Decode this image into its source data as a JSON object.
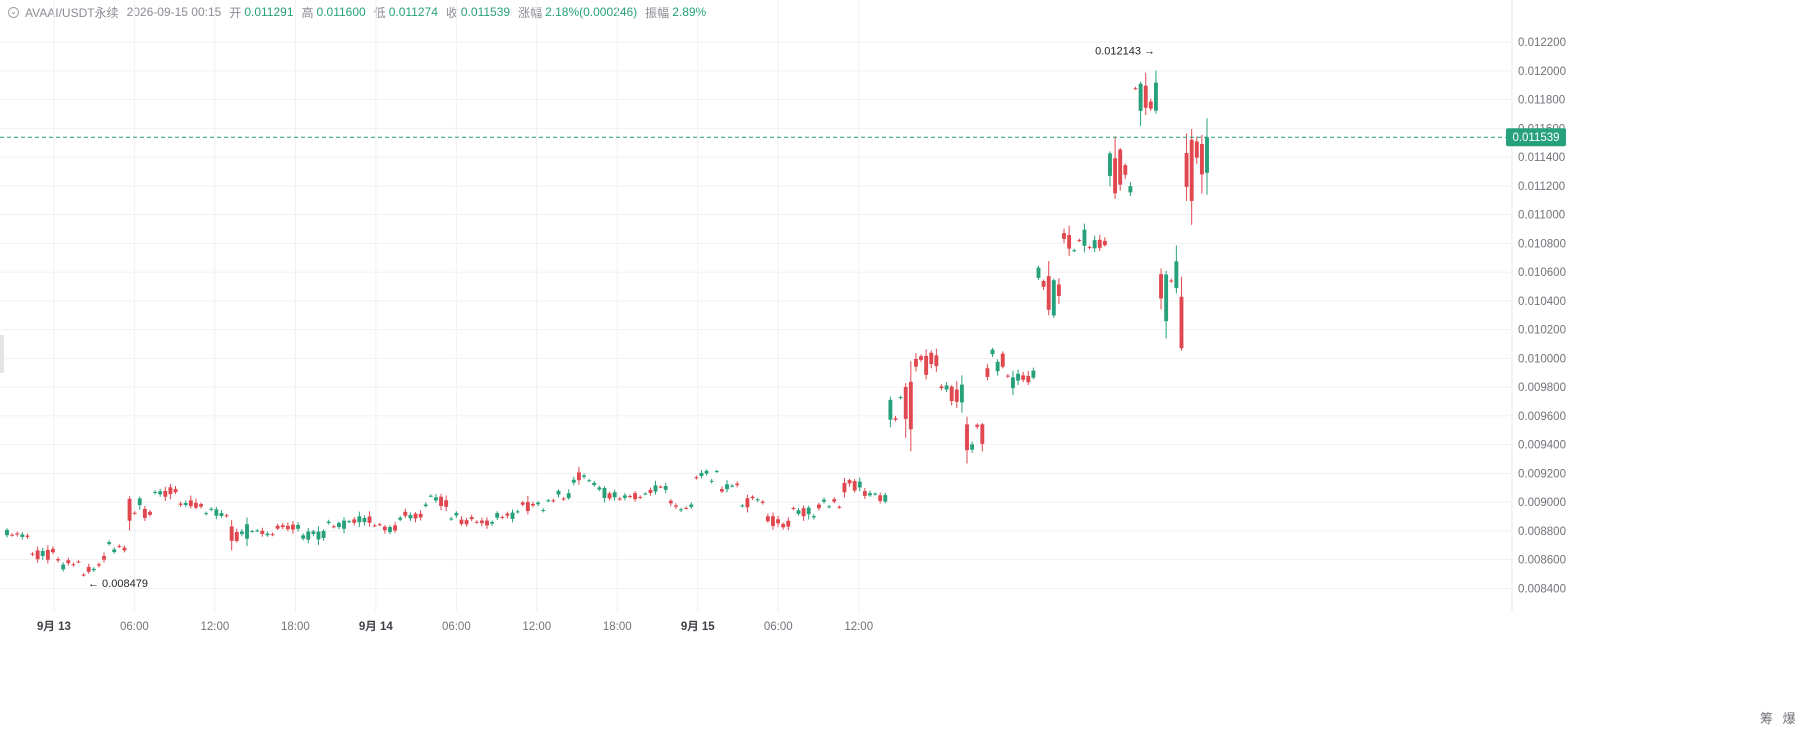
{
  "legend": {
    "symbol": "AVAAI/USDT永续",
    "datetime": "2026-09-15 00:15",
    "open_label": "开",
    "open": "0.011291",
    "high_label": "高",
    "high": "0.011600",
    "low_label": "低",
    "low": "0.011274",
    "close_label": "收",
    "close": "0.011539",
    "change_label": "涨幅",
    "change": "2.18%(0.000246)",
    "amplitude_label": "振幅",
    "amplitude": "2.89%"
  },
  "tools": {
    "chip": "筹",
    "liquidation": "爆"
  },
  "colors": {
    "up": "#26a17b",
    "down": "#e0474f",
    "grid": "#f0f1f3",
    "axis_text": "#707379"
  },
  "chart_data": {
    "type": "candlestick",
    "interval_minutes": 45,
    "first_candle": "2026-09-12 20:30",
    "ylim": [
      0.00834,
      0.01225
    ],
    "yticks": [
      "0.012200",
      "0.012000",
      "0.011800",
      "0.011600",
      "0.011400",
      "0.011200",
      "0.011000",
      "0.010800",
      "0.010600",
      "0.010400",
      "0.010200",
      "0.010000",
      "0.009800",
      "0.009600",
      "0.009400",
      "0.009200",
      "0.009000",
      "0.008800",
      "0.008600",
      "0.008400"
    ],
    "xticks": [
      {
        "label": "9月 13",
        "time": "2026-09-13 00:00",
        "bold": true
      },
      {
        "label": "06:00",
        "time": "2026-09-13 06:00",
        "bold": false
      },
      {
        "label": "12:00",
        "time": "2026-09-13 12:00",
        "bold": false
      },
      {
        "label": "18:00",
        "time": "2026-09-13 18:00",
        "bold": false
      },
      {
        "label": "9月 14",
        "time": "2026-09-14 00:00",
        "bold": true
      },
      {
        "label": "06:00",
        "time": "2026-09-14 06:00",
        "bold": false
      },
      {
        "label": "12:00",
        "time": "2026-09-14 12:00",
        "bold": false
      },
      {
        "label": "18:00",
        "time": "2026-09-14 18:00",
        "bold": false
      },
      {
        "label": "9月 15",
        "time": "2026-09-15 00:00",
        "bold": true
      },
      {
        "label": "06:00",
        "time": "2026-09-15 06:00",
        "bold": false
      },
      {
        "label": "12:00",
        "time": "2026-09-15 12:00",
        "bold": false
      }
    ],
    "last_price": "0.011539",
    "max_marker": {
      "label": "0.012143",
      "price": 0.012143,
      "time": "2026-09-14 22:00"
    },
    "min_marker": {
      "label": "0.008479",
      "price": 0.008479,
      "time": "2026-09-13 01:15"
    },
    "anchors": [
      [
        0.0088,
        0.00879
      ],
      [
        0.00875,
        0.00862
      ],
      [
        0.00866,
        0.00857
      ],
      [
        0.00855,
        0.00849
      ],
      [
        0.0086,
        0.00869
      ],
      [
        0.00869,
        0.00895
      ],
      [
        0.00895,
        0.00908
      ],
      [
        0.00905,
        0.00898
      ],
      [
        0.00898,
        0.00893
      ],
      [
        0.00893,
        0.00876
      ],
      [
        0.0088,
        0.00878
      ],
      [
        0.0088,
        0.00883
      ],
      [
        0.00882,
        0.00877
      ],
      [
        0.00877,
        0.00885
      ],
      [
        0.00885,
        0.00888
      ],
      [
        0.00888,
        0.00881
      ],
      [
        0.00881,
        0.0089
      ],
      [
        0.0089,
        0.009
      ],
      [
        0.009,
        0.00888
      ],
      [
        0.00888,
        0.00886
      ],
      [
        0.00886,
        0.00891
      ],
      [
        0.00891,
        0.00897
      ],
      [
        0.00897,
        0.00904
      ],
      [
        0.00905,
        0.00916
      ],
      [
        0.00916,
        0.00906
      ],
      [
        0.00906,
        0.00904
      ],
      [
        0.00904,
        0.00909
      ],
      [
        0.00909,
        0.00896
      ],
      [
        0.00896,
        0.00915
      ],
      [
        0.00915,
        0.0091
      ],
      [
        0.0091,
        0.009
      ],
      [
        0.009,
        0.00886
      ],
      [
        0.00886,
        0.00893
      ],
      [
        0.00893,
        0.00899
      ],
      [
        0.00899,
        0.00912
      ],
      [
        0.00912,
        0.00904
      ],
      [
        0.00904,
        0.00968
      ],
      [
        0.00968,
        0.00996
      ],
      [
        0.00996,
        0.00975
      ],
      [
        0.00975,
        0.00945
      ],
      [
        0.00945,
        0.01004
      ],
      [
        0.01004,
        0.00985
      ],
      [
        0.00985,
        0.01046
      ],
      [
        0.01046,
        0.01086
      ],
      [
        0.01086,
        0.0108
      ],
      [
        0.0108,
        0.0113
      ],
      [
        0.0113,
        0.0118
      ],
      [
        0.0118,
        0.01026
      ],
      [
        0.01026,
        0.0113
      ],
      [
        0.0113,
        0.01155
      ]
    ]
  }
}
